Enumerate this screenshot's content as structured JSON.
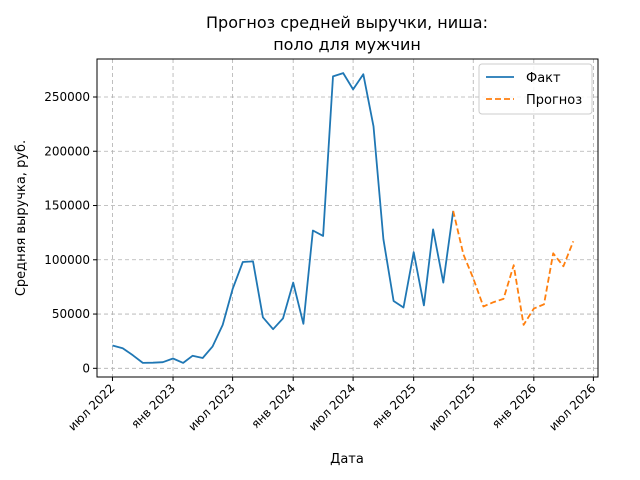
{
  "chart_data": {
    "type": "line",
    "title_line1": "Прогноз средней выручки, ниша:",
    "title_line2": "поло для мужчин",
    "xlabel": "Дата",
    "ylabel": "Средняя выручка, руб.",
    "ylim": [
      -8000,
      285000
    ],
    "xlim": [
      "2022-05-15",
      "2026-07-15"
    ],
    "grid": true,
    "legend_position": "top-right",
    "y_ticks": [
      0,
      50000,
      100000,
      150000,
      200000,
      250000
    ],
    "x_ticks": [
      {
        "date": "2022-07-01",
        "label": "июл 2022"
      },
      {
        "date": "2023-01-01",
        "label": "янв 2023"
      },
      {
        "date": "2023-07-01",
        "label": "июл 2023"
      },
      {
        "date": "2024-01-01",
        "label": "янв 2024"
      },
      {
        "date": "2024-07-01",
        "label": "июл 2024"
      },
      {
        "date": "2025-01-01",
        "label": "янв 2025"
      },
      {
        "date": "2025-07-01",
        "label": "июл 2025"
      },
      {
        "date": "2026-01-01",
        "label": "янв 2026"
      },
      {
        "date": "2026-07-01",
        "label": "июл 2026"
      }
    ],
    "series": [
      {
        "name": "Факт",
        "color": "#1f77b4",
        "style": "solid",
        "x": [
          "2022-07-01",
          "2022-08-01",
          "2022-09-01",
          "2022-10-01",
          "2022-11-01",
          "2022-12-01",
          "2023-01-01",
          "2023-02-01",
          "2023-03-01",
          "2023-04-01",
          "2023-05-01",
          "2023-06-01",
          "2023-07-01",
          "2023-08-01",
          "2023-09-01",
          "2023-10-01",
          "2023-11-01",
          "2023-12-01",
          "2024-01-01",
          "2024-02-01",
          "2024-03-01",
          "2024-04-01",
          "2024-05-01",
          "2024-06-01",
          "2024-07-01",
          "2024-08-01",
          "2024-09-01",
          "2024-10-01",
          "2024-11-01",
          "2024-12-01",
          "2025-01-01",
          "2025-02-01",
          "2025-03-01",
          "2025-04-01",
          "2025-05-01"
        ],
        "y": [
          21000,
          18500,
          12000,
          5000,
          5200,
          5600,
          9000,
          5000,
          11500,
          9500,
          20000,
          40000,
          73000,
          98000,
          98500,
          47000,
          36000,
          46000,
          79000,
          41000,
          127000,
          122000,
          269000,
          272000,
          257000,
          271000,
          223000,
          119000,
          62000,
          56000,
          107000,
          58000,
          128000,
          79000,
          145000
        ]
      },
      {
        "name": "Прогноз",
        "color": "#ff7f0e",
        "style": "dashed",
        "x": [
          "2025-05-01",
          "2025-06-01",
          "2025-07-01",
          "2025-08-01",
          "2025-09-01",
          "2025-10-01",
          "2025-11-01",
          "2025-12-01",
          "2026-01-01",
          "2026-02-01",
          "2026-03-01",
          "2026-04-01",
          "2026-05-01"
        ],
        "y": [
          145000,
          105000,
          83000,
          57000,
          61000,
          64000,
          95000,
          40000,
          55000,
          59000,
          106000,
          94000,
          117000
        ]
      }
    ]
  }
}
